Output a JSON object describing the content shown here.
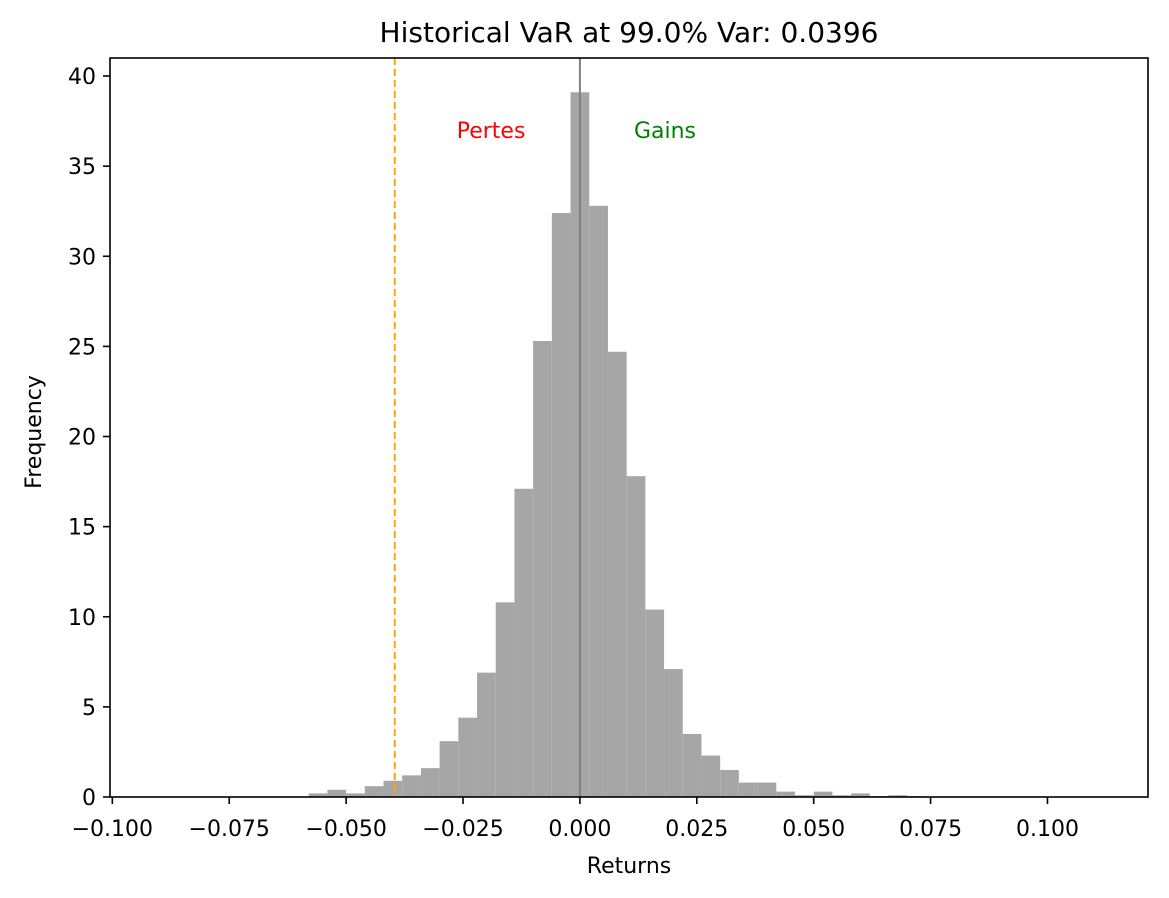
{
  "chart_data": {
    "type": "bar",
    "title": "Historical VaR at 99.0% Var: 0.0396",
    "xlabel": "Returns",
    "ylabel": "Frequency",
    "xlim": [
      -0.1005,
      0.1215
    ],
    "ylim": [
      0,
      41
    ],
    "xticks": [
      -0.1,
      -0.075,
      -0.05,
      -0.025,
      0.0,
      0.025,
      0.05,
      0.075,
      0.1
    ],
    "xtick_labels": [
      "−0.100",
      "−0.075",
      "−0.050",
      "−0.025",
      "0.000",
      "0.025",
      "0.050",
      "0.075",
      "0.100"
    ],
    "yticks": [
      0,
      5,
      10,
      15,
      20,
      25,
      30,
      35,
      40
    ],
    "ytick_labels": [
      "0",
      "5",
      "10",
      "15",
      "20",
      "25",
      "30",
      "35",
      "40"
    ],
    "bar_color": "#a6a6a6",
    "grid": false,
    "histogram": {
      "bin_width": 0.004,
      "bin_starts": [
        -0.058,
        -0.054,
        -0.05,
        -0.046,
        -0.042,
        -0.038,
        -0.034,
        -0.03,
        -0.026,
        -0.022,
        -0.018,
        -0.014,
        -0.01,
        -0.006,
        -0.002,
        0.002,
        0.006,
        0.01,
        0.014,
        0.018,
        0.022,
        0.026,
        0.03,
        0.034,
        0.038,
        0.042,
        0.046,
        0.05,
        0.054,
        0.058,
        0.062,
        0.066,
        0.07
      ],
      "values": [
        0.2,
        0.4,
        0.2,
        0.6,
        0.9,
        1.2,
        1.6,
        3.1,
        4.4,
        6.9,
        10.8,
        17.1,
        25.3,
        32.4,
        39.1,
        32.8,
        24.7,
        17.8,
        10.4,
        7.1,
        3.5,
        2.3,
        1.5,
        0.8,
        0.8,
        0.3,
        0.1,
        0.3,
        0.1,
        0.2,
        0.05,
        0.1,
        0.05
      ]
    },
    "vlines": [
      {
        "x": -0.0396,
        "color": "#ffa500",
        "style": "dashed"
      },
      {
        "x": 0.0,
        "color": "#808080",
        "style": "solid"
      }
    ],
    "annotations": [
      {
        "text": "Pertes",
        "x": -0.019,
        "y": 37,
        "color": "#ff0000"
      },
      {
        "text": "Gains",
        "x": 0.0182,
        "y": 37,
        "color": "#008000"
      }
    ]
  }
}
